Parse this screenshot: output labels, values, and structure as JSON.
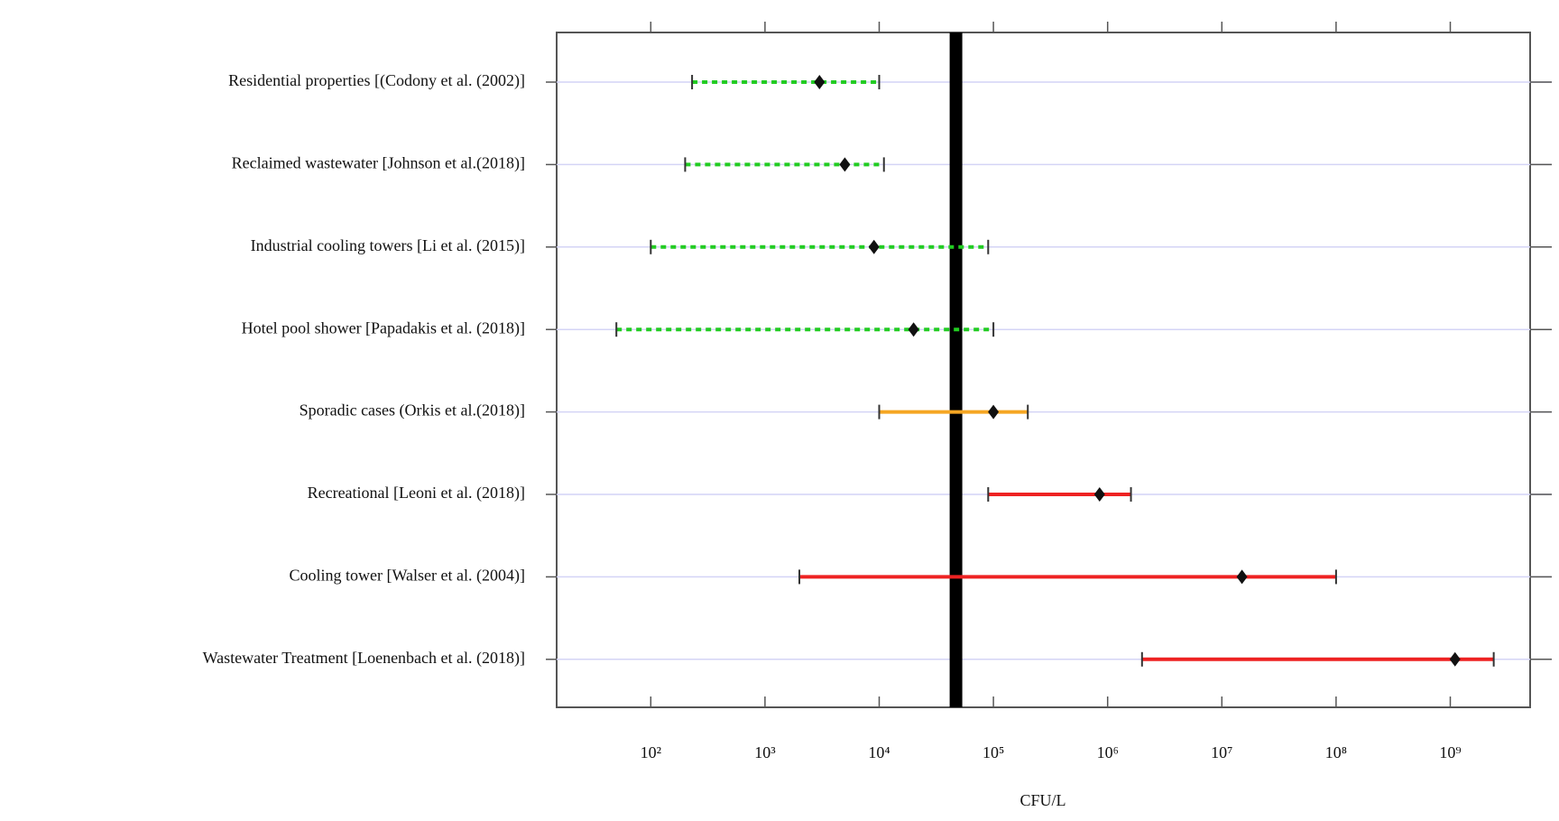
{
  "chart_data": {
    "type": "dot-range",
    "x_label": "CFU/L",
    "categories": [
      "Residential properties [(Codony et al. (2002)]",
      "Reclaimed wastewater [Johnson et al.(2018)]",
      "Industrial cooling towers [Li et al. (2015)]",
      "Hotel pool shower [Papadakis et al. (2018)]",
      "Sporadic cases (Orkis et al.(2018)]",
      "Recreational [Leoni et al. (2018)]",
      "Cooling tower [Walser et al. (2004)]",
      "Wastewater Treatment [Loenenbach et al. (2018)]"
    ],
    "values": [
      3000,
      5000,
      9000,
      20000,
      100000,
      850000,
      15000000,
      1100000000
    ],
    "low": [
      230,
      200,
      100,
      50,
      10000,
      90000,
      2000,
      2000000
    ],
    "high": [
      10000,
      11000,
      90000,
      100000,
      200000,
      1600000,
      100000000,
      2400000000
    ],
    "colors": [
      "#22cc22",
      "#22cc22",
      "#22cc22",
      "#22cc22",
      "#f5a623",
      "#ee2222",
      "#ee2222",
      "#ee2222"
    ],
    "dashed": [
      true,
      true,
      true,
      true,
      false,
      false,
      false,
      false
    ],
    "reference_line": {
      "value": 47000,
      "color": "#000000"
    },
    "log_x": true,
    "xlim": [
      15,
      5000000000
    ],
    "xticks": [
      {
        "value": 100,
        "label": "10²"
      },
      {
        "value": 1000,
        "label": "10³"
      },
      {
        "value": 10000,
        "label": "10⁴"
      },
      {
        "value": 100000,
        "label": "10⁵"
      },
      {
        "value": 1000000,
        "label": "10⁶"
      },
      {
        "value": 10000000,
        "label": "10⁷"
      },
      {
        "value": 100000000,
        "label": "10⁸"
      },
      {
        "value": 1000000000,
        "label": "10⁹"
      }
    ],
    "grid_color": "#d4d4f6"
  }
}
